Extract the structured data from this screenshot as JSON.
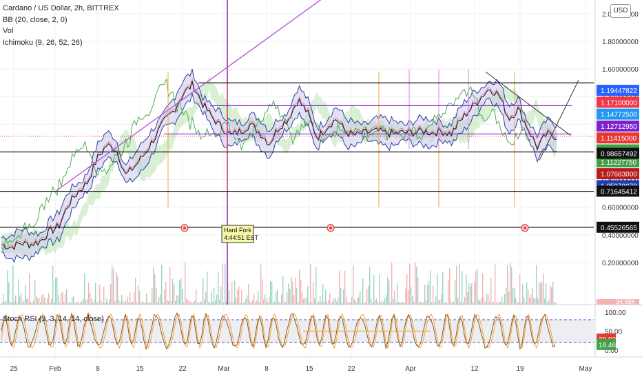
{
  "legend": {
    "title": "Cardano / US Dollar, 2h, BITTREX",
    "bb": "BB (20, close, 2, 0)",
    "vol": "Vol",
    "ichimoku": "Ichimoku (9, 26, 52, 26)"
  },
  "currency_button": "USD",
  "stoch_label": "Stoch RSI (3, 3, 14, 14, close)",
  "annotation": {
    "line1": "Hard Fork",
    "line2": "4:44:51 EST"
  },
  "colors": {
    "price": "#1c1c2e",
    "bb_fill": "#c9c4ec",
    "bb_line": "#2a3f9c",
    "cloud_green": "#b9e3b1",
    "cloud_red": "#f2b7b3",
    "conversion": "#d94a4a",
    "lagging": "#4caf50",
    "trend_purple": "#b24cd6",
    "stoch_line": "#8a5a1f",
    "orange_marker": "#f2a33a"
  },
  "chart_data": [
    {
      "type": "line",
      "title": "Cardano / US Dollar, 2h, BITTREX",
      "x_ticks": [
        "25",
        "Feb",
        "8",
        "15",
        "22",
        "Mar",
        "8",
        "15",
        "22",
        "Apr",
        "12",
        "19",
        "May"
      ],
      "y_ticks": [
        "0.20000000",
        "0.40000000",
        "0.60000000",
        "0.80000000",
        "1.00000000",
        "1.20000000",
        "1.40000000",
        "1.60000000",
        "1.80000000",
        "2.00000000"
      ],
      "ylim": [
        0.0,
        2.05
      ],
      "scale": "linear",
      "series": [
        {
          "values": [
            0.33,
            0.31,
            0.34,
            0.33,
            0.35,
            0.42,
            0.46,
            0.62,
            0.71,
            0.78,
            0.95,
            1.05,
            1.02,
            0.83,
            0.9,
            0.99,
            1.1,
            1.22,
            1.3,
            1.42,
            1.49,
            1.35,
            1.25,
            1.18,
            1.12,
            1.15,
            1.2,
            1.14,
            1.06,
            1.18,
            1.24,
            1.38,
            1.28,
            1.1,
            1.18,
            1.24,
            1.14,
            1.12,
            1.14,
            1.15,
            1.14,
            1.13,
            1.14,
            1.14,
            1.15,
            1.14,
            1.15,
            1.13,
            1.23,
            1.31,
            1.39,
            1.46,
            1.41,
            1.24,
            1.31,
            1.17,
            1.03,
            1.13,
            1.11
          ]
        }
      ],
      "price_labels": [
        {
          "value": "1.19447822",
          "color": "#2962ff"
        },
        {
          "value": "1.17100000",
          "color": "#f23645"
        },
        {
          "value": "1.14772500",
          "color": "#2196f3"
        },
        {
          "value": "1.12712950",
          "color": "#7e22ce"
        },
        {
          "value": "1.11415000",
          "color": "#e53935"
        },
        {
          "value": "1.11415000",
          "color": "#43a047"
        },
        {
          "value": "1.11227750",
          "color": "#43a047"
        },
        {
          "value": "1.07683000",
          "color": "#b71c1c"
        },
        {
          "value": "1.05978078",
          "color": "#1e40af"
        },
        {
          "value": "0.98657492",
          "color": "#111111"
        },
        {
          "value": "0.71645412",
          "color": "#111111"
        },
        {
          "value": "0.45526565",
          "color": "#111111"
        }
      ],
      "volume_label": "34.58K",
      "grid": true
    },
    {
      "type": "line",
      "title": "Stoch RSI (3, 3, 14, 14, close)",
      "y_ticks": [
        "0.00",
        "50.00",
        "100.00"
      ],
      "ylim": [
        0,
        100
      ],
      "bands": [
        20,
        80
      ],
      "value_labels": [
        {
          "value": "29.02",
          "color": "#e53935"
        },
        {
          "value": "18.46",
          "color": "#43a047"
        }
      ]
    }
  ]
}
